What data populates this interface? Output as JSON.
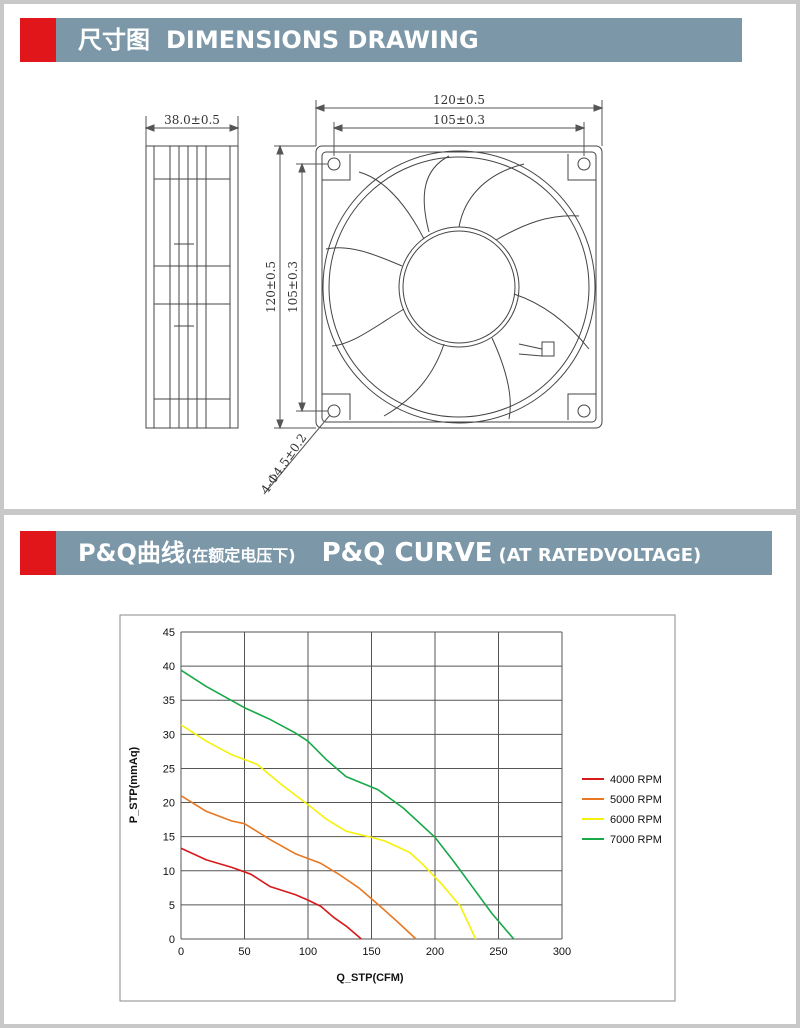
{
  "section1": {
    "title_cn": "尺寸图",
    "title_en": "DIMENSIONS DRAWING",
    "dims": {
      "depth": "38.0±0.5",
      "width_outer": "120±0.5",
      "width_holes": "105±0.3",
      "height_outer": "120±0.5",
      "height_holes": "105±0.3",
      "holes": "4-Φ4.5±0.2"
    }
  },
  "section2": {
    "title_cn": "P&Q曲线",
    "title_cn_sub": "(在额定电压下)",
    "title_en": "P&Q CURVE",
    "title_en_sub": "(AT RATEDVOLTAGE)"
  },
  "chart_data": {
    "type": "line",
    "title": "",
    "xlabel": "Q_STP(CFM)",
    "ylabel": "P_STP(mmAq)",
    "xlim": [
      0,
      300
    ],
    "ylim": [
      0,
      45
    ],
    "xticks": [
      0,
      50,
      100,
      150,
      200,
      250,
      300
    ],
    "yticks": [
      0,
      5,
      10,
      15,
      20,
      25,
      30,
      35,
      40,
      45
    ],
    "grid": true,
    "legend_position": "right",
    "series": [
      {
        "name": "4000 RPM",
        "color": "#d7191c",
        "points": [
          [
            0,
            13.3
          ],
          [
            20,
            11.6
          ],
          [
            40,
            10.5
          ],
          [
            55,
            9.5
          ],
          [
            70,
            7.7
          ],
          [
            90,
            6.5
          ],
          [
            100,
            5.7
          ],
          [
            110,
            4.8
          ],
          [
            120,
            3.2
          ],
          [
            130,
            1.9
          ],
          [
            142,
            0
          ]
        ]
      },
      {
        "name": "5000 RPM",
        "color": "#e87722",
        "points": [
          [
            0,
            21
          ],
          [
            20,
            18.7
          ],
          [
            40,
            17.3
          ],
          [
            50,
            16.9
          ],
          [
            70,
            14.6
          ],
          [
            90,
            12.5
          ],
          [
            110,
            11.1
          ],
          [
            125,
            9.4
          ],
          [
            140,
            7.5
          ],
          [
            155,
            5.1
          ],
          [
            170,
            2.6
          ],
          [
            185,
            0
          ]
        ]
      },
      {
        "name": "6000 RPM",
        "color": "#f5f20a",
        "points": [
          [
            0,
            31.4
          ],
          [
            20,
            29
          ],
          [
            40,
            27
          ],
          [
            60,
            25.6
          ],
          [
            80,
            22.5
          ],
          [
            100,
            19.7
          ],
          [
            115,
            17.5
          ],
          [
            130,
            15.8
          ],
          [
            150,
            14.9
          ],
          [
            160,
            14.4
          ],
          [
            180,
            12.7
          ],
          [
            190,
            11
          ],
          [
            205,
            8.1
          ],
          [
            220,
            4.8
          ],
          [
            232,
            0
          ]
        ]
      },
      {
        "name": "7000 RPM",
        "color": "#18a848",
        "points": [
          [
            0,
            39.4
          ],
          [
            20,
            37
          ],
          [
            50,
            33.9
          ],
          [
            70,
            32.2
          ],
          [
            90,
            30.2
          ],
          [
            100,
            29
          ],
          [
            115,
            26.2
          ],
          [
            130,
            23.8
          ],
          [
            155,
            21.9
          ],
          [
            175,
            19.2
          ],
          [
            200,
            14.9
          ],
          [
            215,
            11.3
          ],
          [
            230,
            7.5
          ],
          [
            245,
            3.7
          ],
          [
            262,
            0
          ]
        ]
      }
    ]
  }
}
